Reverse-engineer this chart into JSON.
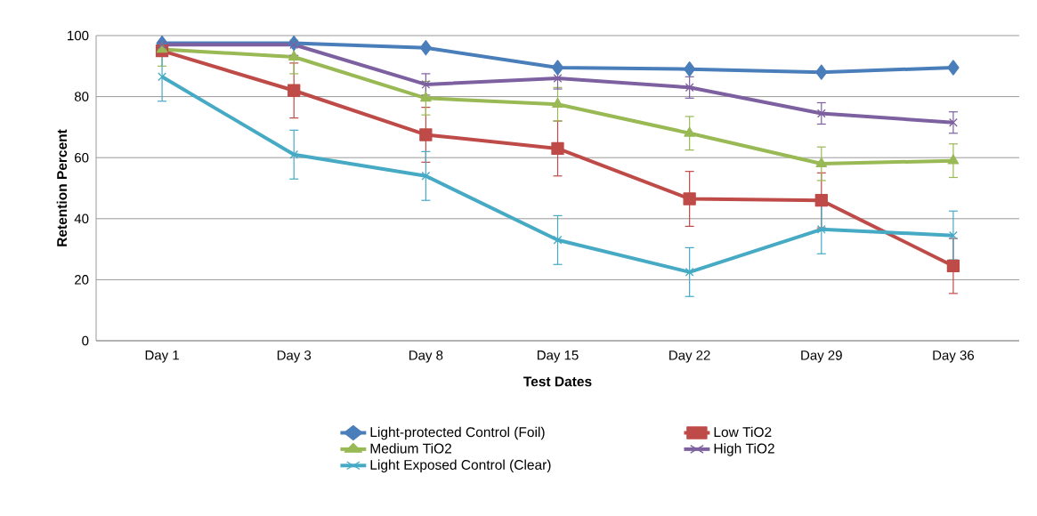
{
  "chart_data": {
    "type": "line",
    "xlabel": "Test Dates",
    "ylabel": "Retention Percent",
    "categories": [
      "Day 1",
      "Day 3",
      "Day 8",
      "Day 15",
      "Day 22",
      "Day 29",
      "Day 36"
    ],
    "ylim": [
      0,
      100
    ],
    "yticks": [
      0,
      20,
      40,
      60,
      80,
      100
    ],
    "grid": "y",
    "legend": "bottom",
    "line_style": "solid",
    "series": [
      {
        "name": "Light-protected Control (Foil)",
        "color": "#4a7ebb",
        "marker": "diamond",
        "values": [
          97.5,
          97.5,
          96,
          89.5,
          89,
          88,
          89.5
        ]
      },
      {
        "name": "Low TiO2",
        "color": "#be4b48",
        "marker": "square",
        "values": [
          95,
          82,
          67.5,
          63,
          46.5,
          46,
          24.5
        ],
        "errors": [
          null,
          9,
          9,
          9,
          9,
          9,
          9
        ]
      },
      {
        "name": "Medium TiO2",
        "color": "#98b954",
        "marker": "triangle",
        "values": [
          95.5,
          93,
          79.5,
          77.5,
          68,
          58,
          59
        ],
        "errors": [
          5.5,
          5.5,
          5.5,
          5.5,
          5.5,
          5.5,
          5.5
        ]
      },
      {
        "name": "High TiO2",
        "color": "#7d60a0",
        "marker": "cross",
        "values": [
          97,
          97,
          84,
          86,
          83,
          74.5,
          71.5
        ],
        "errors": [
          3.5,
          3.5,
          3.5,
          3.5,
          3.5,
          3.5,
          3.5
        ]
      },
      {
        "name": "Light Exposed Control (Clear)",
        "color": "#46aac5",
        "marker": "cross",
        "values": [
          86.5,
          61,
          54,
          33,
          22.5,
          36.5,
          34.5
        ],
        "errors": [
          8,
          8,
          8,
          8,
          8,
          8,
          8
        ]
      }
    ]
  }
}
